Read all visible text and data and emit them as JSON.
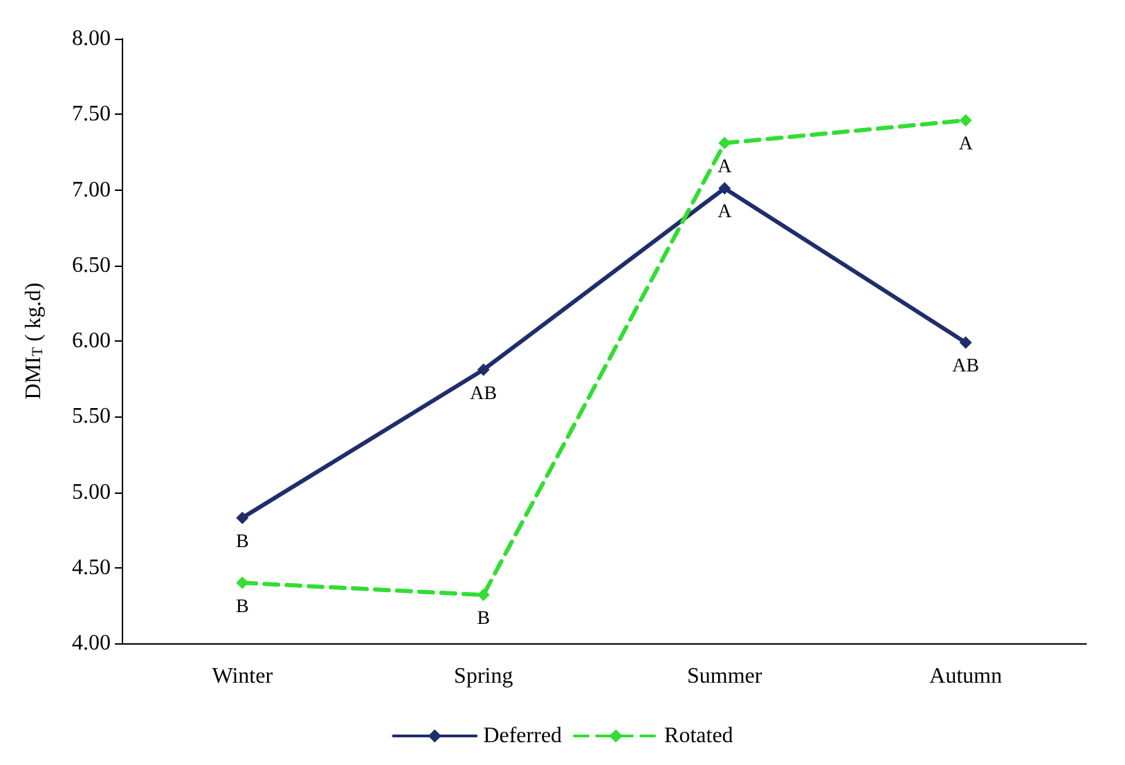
{
  "chart_data": {
    "type": "line",
    "ylabel": "DMI$_{T}$ ( kg.d)",
    "categories": [
      "Winter",
      "Spring",
      "Summer",
      "Autumn"
    ],
    "series": [
      {
        "name": "Deferred",
        "color": "#1f2d6b",
        "line_style": "solid",
        "values": [
          4.83,
          5.81,
          7.01,
          5.99
        ],
        "value_labels": [
          "B",
          "AB",
          "A",
          "AB"
        ]
      },
      {
        "name": "Rotated",
        "color": "#33dd33",
        "line_style": "dashed",
        "values": [
          4.4,
          4.32,
          7.31,
          7.46
        ],
        "value_labels": [
          "B",
          "B",
          "A",
          "A"
        ]
      }
    ],
    "ylim": [
      4,
      8
    ],
    "yticks": [
      {
        "value": 4,
        "label": "4.00"
      },
      {
        "value": 4.5,
        "label": "4.50"
      },
      {
        "value": 5,
        "label": "5.00"
      },
      {
        "value": 5.5,
        "label": "5.50"
      },
      {
        "value": 6,
        "label": "6.00"
      },
      {
        "value": 6.5,
        "label": "6.50"
      },
      {
        "value": 7,
        "label": "7.00"
      },
      {
        "value": 7.5,
        "label": "7.50"
      },
      {
        "value": 8,
        "label": "8.00"
      }
    ],
    "grid": false,
    "legend": "bottom",
    "marker": "diamond"
  }
}
